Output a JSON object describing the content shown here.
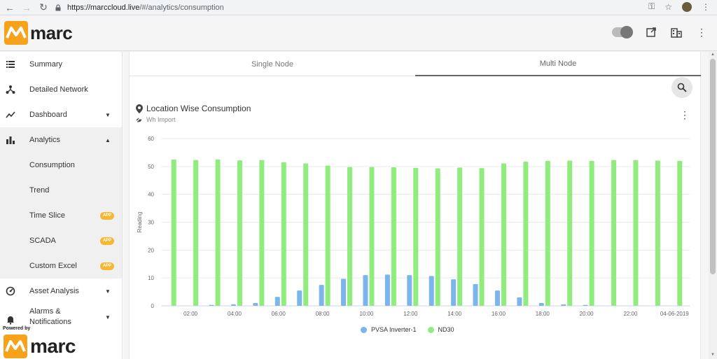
{
  "browser": {
    "url_host": "https://marccloud.live",
    "url_path": "/#/analytics/consumption"
  },
  "header": {
    "logo_text": "marc"
  },
  "sidebar": {
    "items": [
      {
        "label": "Summary",
        "icon": "list-icon"
      },
      {
        "label": "Detailed Network",
        "icon": "network-icon"
      },
      {
        "label": "Dashboard",
        "icon": "trend-icon"
      },
      {
        "label": "Analytics",
        "icon": "bar-chart-icon"
      },
      {
        "label": "Asset Analysis",
        "icon": "gauge-icon"
      },
      {
        "label": "Alarms & Notifications",
        "icon": "bell-icon"
      }
    ],
    "analytics_sub": [
      {
        "label": "Consumption",
        "badge": ""
      },
      {
        "label": "Trend",
        "badge": ""
      },
      {
        "label": "Time Slice",
        "badge": "APP"
      },
      {
        "label": "SCADA",
        "badge": "APP"
      },
      {
        "label": "Custom Excel",
        "badge": "APP"
      }
    ],
    "alarms_line1": "Alarms &",
    "alarms_line2": "Notifications",
    "powered_by": "Powered by",
    "powered_logo": "marc"
  },
  "tabs": [
    {
      "label": "Single Node"
    },
    {
      "label": "Multi Node"
    }
  ],
  "chart_header": {
    "title": "Location Wise Consumption",
    "subtitle": "Wh Import"
  },
  "colors": {
    "pvsa": "#7cb5ec",
    "nd30": "#90ed7d",
    "accent": "#f7b731"
  },
  "chart_data": {
    "type": "bar",
    "ylabel": "Reading",
    "ylim": [
      0,
      60
    ],
    "yticks": [
      0,
      10,
      20,
      30,
      40,
      50,
      60
    ],
    "xtick_labels": [
      "02:00",
      "04:00",
      "06:00",
      "08:00",
      "10:00",
      "12:00",
      "14:00",
      "16:00",
      "18:00",
      "20:00",
      "22:00",
      "04-06-2019"
    ],
    "grid": true,
    "legend_position": "bottom",
    "series": [
      {
        "name": "PVSA Inverter-1",
        "values": [
          0,
          0,
          0.3,
          0.5,
          1,
          3.2,
          5.5,
          7.5,
          9.7,
          11,
          11.2,
          11,
          10.7,
          9.5,
          7.8,
          5.5,
          3,
          1,
          0.5,
          0.3,
          0,
          0,
          0,
          0
        ]
      },
      {
        "name": "ND30",
        "values": [
          52.5,
          52.3,
          52.5,
          52.2,
          52.3,
          51.5,
          51.1,
          50.3,
          49.8,
          49.8,
          49.7,
          49.5,
          49.3,
          49.6,
          49.4,
          51.1,
          51.7,
          52,
          52.1,
          52,
          52.3,
          52.3,
          52.1,
          52
        ]
      }
    ]
  }
}
